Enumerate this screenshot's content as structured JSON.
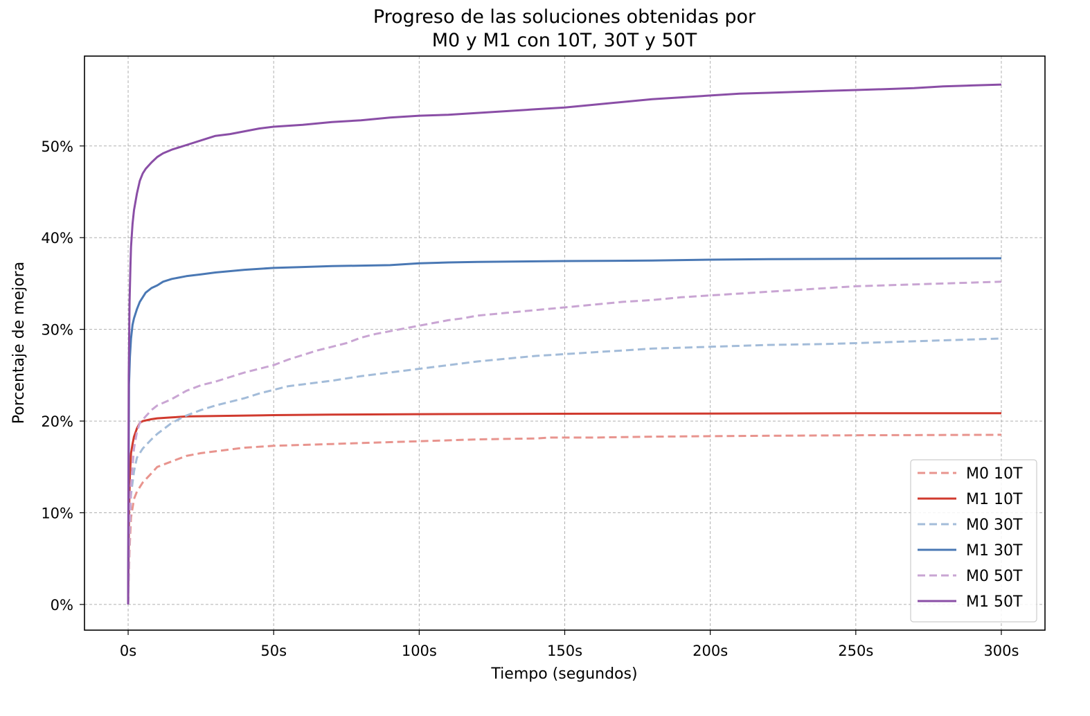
{
  "chart_data": {
    "type": "line",
    "title": "Progreso de las soluciones obtenidas por\nM0 y M1 con 10T, 30T y 50T",
    "title_lines": [
      "Progreso de las soluciones obtenidas por",
      "M0 y M1 con 10T, 30T y 50T"
    ],
    "xlabel": "Tiempo (segundos)",
    "ylabel": "Porcentaje de mejora",
    "xlim": [
      -15,
      315
    ],
    "ylim": [
      -2.8,
      59.8
    ],
    "x_ticks": [
      0,
      50,
      100,
      150,
      200,
      250,
      300
    ],
    "x_tick_labels": [
      "0s",
      "50s",
      "100s",
      "150s",
      "200s",
      "250s",
      "300s"
    ],
    "y_ticks": [
      0,
      10,
      20,
      30,
      40,
      50
    ],
    "y_tick_labels": [
      "0%",
      "10%",
      "20%",
      "30%",
      "40%",
      "50%"
    ],
    "grid": true,
    "legend_position": "bottom-right",
    "series": [
      {
        "name": "M0 10T",
        "color": "#e8948e",
        "style": "dashed",
        "points": [
          [
            0,
            0
          ],
          [
            0.5,
            6
          ],
          [
            1,
            9.5
          ],
          [
            2,
            11.5
          ],
          [
            3,
            12.3
          ],
          [
            5,
            13.3
          ],
          [
            8,
            14.3
          ],
          [
            10,
            15
          ],
          [
            15,
            15.6
          ],
          [
            20,
            16.2
          ],
          [
            25,
            16.5
          ],
          [
            30,
            16.7
          ],
          [
            35,
            16.9
          ],
          [
            40,
            17.1
          ],
          [
            50,
            17.3
          ],
          [
            60,
            17.4
          ],
          [
            70,
            17.5
          ],
          [
            80,
            17.6
          ],
          [
            90,
            17.7
          ],
          [
            100,
            17.8
          ],
          [
            110,
            17.9
          ],
          [
            120,
            18
          ],
          [
            140,
            18.1
          ],
          [
            145,
            18.2
          ],
          [
            160,
            18.2
          ],
          [
            180,
            18.3
          ],
          [
            200,
            18.35
          ],
          [
            220,
            18.4
          ],
          [
            250,
            18.45
          ],
          [
            300,
            18.5
          ]
        ]
      },
      {
        "name": "M1 10T",
        "color": "#d03a2e",
        "style": "solid",
        "points": [
          [
            0,
            0
          ],
          [
            0.3,
            10
          ],
          [
            0.6,
            14
          ],
          [
            1,
            16.5
          ],
          [
            1.5,
            17.5
          ],
          [
            2,
            18.3
          ],
          [
            3,
            19.2
          ],
          [
            4,
            19.8
          ],
          [
            5,
            20
          ],
          [
            8,
            20.2
          ],
          [
            10,
            20.3
          ],
          [
            15,
            20.4
          ],
          [
            20,
            20.5
          ],
          [
            30,
            20.55
          ],
          [
            50,
            20.65
          ],
          [
            70,
            20.7
          ],
          [
            100,
            20.75
          ],
          [
            150,
            20.8
          ],
          [
            200,
            20.82
          ],
          [
            250,
            20.85
          ],
          [
            300,
            20.85
          ]
        ]
      },
      {
        "name": "M0 30T",
        "color": "#a3bcd9",
        "style": "dashed",
        "points": [
          [
            0,
            0
          ],
          [
            0.5,
            8
          ],
          [
            1,
            12
          ],
          [
            2,
            14.5
          ],
          [
            3,
            16
          ],
          [
            5,
            17
          ],
          [
            8,
            18
          ],
          [
            10,
            18.6
          ],
          [
            15,
            19.8
          ],
          [
            20,
            20.6
          ],
          [
            25,
            21.2
          ],
          [
            30,
            21.7
          ],
          [
            35,
            22.1
          ],
          [
            40,
            22.5
          ],
          [
            45,
            23
          ],
          [
            50,
            23.4
          ],
          [
            55,
            23.8
          ],
          [
            60,
            24
          ],
          [
            70,
            24.4
          ],
          [
            80,
            24.9
          ],
          [
            90,
            25.3
          ],
          [
            100,
            25.7
          ],
          [
            110,
            26.1
          ],
          [
            120,
            26.5
          ],
          [
            130,
            26.8
          ],
          [
            140,
            27.1
          ],
          [
            150,
            27.3
          ],
          [
            160,
            27.5
          ],
          [
            170,
            27.7
          ],
          [
            180,
            27.9
          ],
          [
            200,
            28.1
          ],
          [
            220,
            28.3
          ],
          [
            240,
            28.4
          ],
          [
            260,
            28.6
          ],
          [
            280,
            28.8
          ],
          [
            300,
            29
          ]
        ]
      },
      {
        "name": "M1 30T",
        "color": "#4a78b4",
        "style": "solid",
        "points": [
          [
            0,
            0
          ],
          [
            0.3,
            24
          ],
          [
            0.6,
            27
          ],
          [
            1,
            29
          ],
          [
            1.5,
            30.5
          ],
          [
            2,
            31.2
          ],
          [
            3,
            32.2
          ],
          [
            4,
            33
          ],
          [
            5,
            33.5
          ],
          [
            6,
            34
          ],
          [
            8,
            34.5
          ],
          [
            10,
            34.8
          ],
          [
            12,
            35.2
          ],
          [
            15,
            35.5
          ],
          [
            20,
            35.8
          ],
          [
            25,
            36
          ],
          [
            30,
            36.2
          ],
          [
            40,
            36.5
          ],
          [
            50,
            36.7
          ],
          [
            60,
            36.8
          ],
          [
            70,
            36.9
          ],
          [
            80,
            36.95
          ],
          [
            90,
            37
          ],
          [
            100,
            37.2
          ],
          [
            110,
            37.3
          ],
          [
            120,
            37.35
          ],
          [
            150,
            37.45
          ],
          [
            180,
            37.5
          ],
          [
            200,
            37.6
          ],
          [
            220,
            37.65
          ],
          [
            250,
            37.7
          ],
          [
            300,
            37.75
          ]
        ]
      },
      {
        "name": "M0 50T",
        "color": "#c9a5d3",
        "style": "dashed",
        "points": [
          [
            0,
            0
          ],
          [
            0.5,
            8
          ],
          [
            1,
            13
          ],
          [
            2,
            17
          ],
          [
            3,
            18.8
          ],
          [
            4,
            19.8
          ],
          [
            6,
            20.5
          ],
          [
            8,
            21.2
          ],
          [
            10,
            21.7
          ],
          [
            15,
            22.4
          ],
          [
            20,
            23.3
          ],
          [
            25,
            23.9
          ],
          [
            30,
            24.3
          ],
          [
            35,
            24.8
          ],
          [
            40,
            25.3
          ],
          [
            45,
            25.7
          ],
          [
            50,
            26.1
          ],
          [
            55,
            26.7
          ],
          [
            60,
            27.2
          ],
          [
            65,
            27.7
          ],
          [
            70,
            28.1
          ],
          [
            75,
            28.5
          ],
          [
            80,
            29.1
          ],
          [
            85,
            29.5
          ],
          [
            90,
            29.8
          ],
          [
            95,
            30.1
          ],
          [
            100,
            30.4
          ],
          [
            105,
            30.7
          ],
          [
            110,
            31
          ],
          [
            115,
            31.2
          ],
          [
            120,
            31.5
          ],
          [
            130,
            31.8
          ],
          [
            140,
            32.1
          ],
          [
            150,
            32.4
          ],
          [
            160,
            32.7
          ],
          [
            170,
            33
          ],
          [
            180,
            33.2
          ],
          [
            190,
            33.5
          ],
          [
            200,
            33.7
          ],
          [
            210,
            33.9
          ],
          [
            220,
            34.1
          ],
          [
            230,
            34.3
          ],
          [
            240,
            34.5
          ],
          [
            250,
            34.7
          ],
          [
            260,
            34.8
          ],
          [
            270,
            34.9
          ],
          [
            280,
            35
          ],
          [
            290,
            35.1
          ],
          [
            300,
            35.2
          ]
        ]
      },
      {
        "name": "M1 50T",
        "color": "#8a4ea6",
        "style": "solid",
        "points": [
          [
            0,
            0
          ],
          [
            0.2,
            25
          ],
          [
            0.5,
            33
          ],
          [
            0.8,
            37
          ],
          [
            1,
            39
          ],
          [
            1.5,
            41.5
          ],
          [
            2,
            43
          ],
          [
            3,
            44.8
          ],
          [
            4,
            46.2
          ],
          [
            5,
            47
          ],
          [
            6,
            47.5
          ],
          [
            8,
            48.2
          ],
          [
            10,
            48.8
          ],
          [
            12,
            49.2
          ],
          [
            15,
            49.6
          ],
          [
            20,
            50.1
          ],
          [
            25,
            50.6
          ],
          [
            30,
            51.1
          ],
          [
            35,
            51.3
          ],
          [
            40,
            51.6
          ],
          [
            45,
            51.9
          ],
          [
            50,
            52.1
          ],
          [
            60,
            52.3
          ],
          [
            70,
            52.6
          ],
          [
            80,
            52.8
          ],
          [
            90,
            53.1
          ],
          [
            100,
            53.3
          ],
          [
            110,
            53.4
          ],
          [
            120,
            53.6
          ],
          [
            130,
            53.8
          ],
          [
            140,
            54
          ],
          [
            150,
            54.2
          ],
          [
            160,
            54.5
          ],
          [
            170,
            54.8
          ],
          [
            180,
            55.1
          ],
          [
            190,
            55.3
          ],
          [
            200,
            55.5
          ],
          [
            210,
            55.7
          ],
          [
            220,
            55.8
          ],
          [
            230,
            55.9
          ],
          [
            240,
            56
          ],
          [
            250,
            56.1
          ],
          [
            260,
            56.2
          ],
          [
            270,
            56.3
          ],
          [
            280,
            56.5
          ],
          [
            290,
            56.6
          ],
          [
            300,
            56.7
          ]
        ]
      }
    ]
  }
}
